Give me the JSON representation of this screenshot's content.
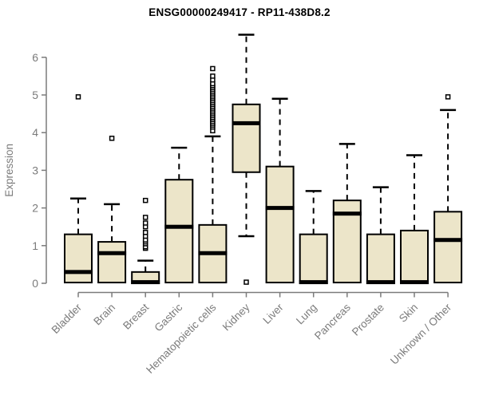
{
  "chart_data": {
    "type": "boxplot",
    "title": "ENSG00000249417 - RP11-438D8.2",
    "xlabel": "",
    "ylabel": "Expression",
    "ylim": [
      0,
      6.6
    ],
    "yticks": [
      0,
      1,
      2,
      3,
      4,
      5,
      6
    ],
    "grid": false,
    "legend": "none",
    "categories": [
      "Bladder",
      "Brain",
      "Breast",
      "Gastric",
      "Hematopoietic cells",
      "Kidney",
      "Liver",
      "Lung",
      "Pancreas",
      "Prostate",
      "Skin",
      "Unknown / Other"
    ],
    "series": [
      {
        "name": "Bladder",
        "slug": "bladder",
        "whisker_low": 0,
        "q1": 0.02,
        "median": 0.3,
        "q3": 1.3,
        "whisker_high": 2.25,
        "outliers": [
          4.95
        ]
      },
      {
        "name": "Brain",
        "slug": "brain",
        "whisker_low": 0,
        "q1": 0.02,
        "median": 0.8,
        "q3": 1.1,
        "whisker_high": 2.1,
        "outliers": [
          3.85
        ]
      },
      {
        "name": "Breast",
        "slug": "breast",
        "whisker_low": 0,
        "q1": 0,
        "median": 0.03,
        "q3": 0.3,
        "whisker_high": 0.6,
        "outliers": [
          0.93,
          0.97,
          1.05,
          1.1,
          1.15,
          1.25,
          1.35,
          1.5,
          1.6,
          1.75,
          2.2
        ]
      },
      {
        "name": "Gastric",
        "slug": "gastric",
        "whisker_low": 0,
        "q1": 0.02,
        "median": 1.5,
        "q3": 2.75,
        "whisker_high": 3.6,
        "outliers": []
      },
      {
        "name": "Hematopoietic cells",
        "slug": "hematopoietic-cells",
        "whisker_low": 0,
        "q1": 0.02,
        "median": 0.8,
        "q3": 1.55,
        "whisker_high": 3.9,
        "outliers": [
          4.05,
          4.15,
          4.2,
          4.25,
          4.3,
          4.35,
          4.4,
          4.45,
          4.5,
          4.55,
          4.6,
          4.65,
          4.7,
          4.75,
          4.8,
          4.85,
          4.9,
          4.95,
          5.0,
          5.05,
          5.1,
          5.15,
          5.2,
          5.25,
          5.3,
          5.4,
          5.5,
          5.7
        ]
      },
      {
        "name": "Kidney",
        "slug": "kidney",
        "whisker_low": 1.25,
        "q1": 2.95,
        "median": 4.25,
        "q3": 4.75,
        "whisker_high": 6.6,
        "outliers": [
          0.03
        ]
      },
      {
        "name": "Liver",
        "slug": "liver",
        "whisker_low": 0,
        "q1": 0.02,
        "median": 2.0,
        "q3": 3.1,
        "whisker_high": 4.9,
        "outliers": []
      },
      {
        "name": "Lung",
        "slug": "lung",
        "whisker_low": 0,
        "q1": 0,
        "median": 0.03,
        "q3": 1.3,
        "whisker_high": 2.45,
        "outliers": []
      },
      {
        "name": "Pancreas",
        "slug": "pancreas",
        "whisker_low": 0,
        "q1": 0.02,
        "median": 1.85,
        "q3": 2.2,
        "whisker_high": 3.7,
        "outliers": []
      },
      {
        "name": "Prostate",
        "slug": "prostate",
        "whisker_low": 0,
        "q1": 0,
        "median": 0.03,
        "q3": 1.3,
        "whisker_high": 2.55,
        "outliers": []
      },
      {
        "name": "Skin",
        "slug": "skin",
        "whisker_low": 0,
        "q1": 0,
        "median": 0.03,
        "q3": 1.4,
        "whisker_high": 3.4,
        "outliers": []
      },
      {
        "name": "Unknown / Other",
        "slug": "unknown-other",
        "whisker_low": 0,
        "q1": 0.02,
        "median": 1.15,
        "q3": 1.9,
        "whisker_high": 4.6,
        "outliers": [
          4.95
        ]
      }
    ],
    "colors": {
      "box_fill": "#ECE5C9",
      "box_stroke": "#000000",
      "median": "#000000",
      "whisker": "#000000",
      "outlier_stroke": "#000000",
      "outlier_fill": "#ffffff",
      "axis": "#7B7B7B",
      "title": "#000000",
      "background": "#ffffff"
    }
  }
}
